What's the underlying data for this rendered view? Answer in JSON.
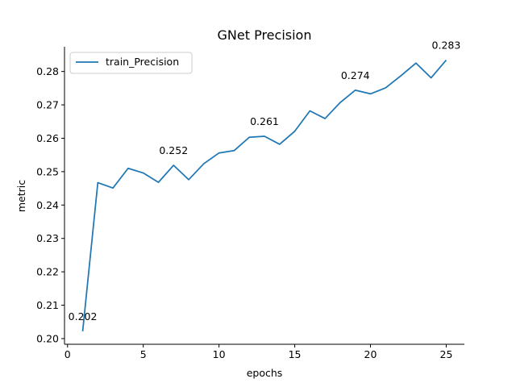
{
  "chart_data": {
    "type": "line",
    "title": "GNet Precision",
    "xlabel": "epochs",
    "ylabel": "metric",
    "xlim": [
      -0.2,
      26.2
    ],
    "ylim": [
      0.1983,
      0.2874
    ],
    "xticks": [
      0,
      5,
      10,
      15,
      20,
      25
    ],
    "yticks": [
      0.2,
      0.21,
      0.22,
      0.23,
      0.24,
      0.25,
      0.26,
      0.27,
      0.28
    ],
    "grid": false,
    "legend": "top-left",
    "series": [
      {
        "name": "train_Precision",
        "color": "#1f77b4",
        "x": [
          1,
          2,
          3,
          4,
          5,
          6,
          7,
          8,
          9,
          10,
          11,
          12,
          13,
          14,
          15,
          16,
          17,
          18,
          19,
          20,
          21,
          22,
          23,
          24,
          25
        ],
        "y": [
          0.2022,
          0.2467,
          0.2451,
          0.251,
          0.2496,
          0.2468,
          0.2519,
          0.2476,
          0.2524,
          0.2556,
          0.2563,
          0.2603,
          0.2606,
          0.2582,
          0.2621,
          0.2682,
          0.2659,
          0.2707,
          0.2744,
          0.2733,
          0.2751,
          0.2787,
          0.2825,
          0.2781,
          0.2834
        ]
      }
    ],
    "annotations": [
      {
        "x": 1,
        "y": 0.2022,
        "text": "0.202"
      },
      {
        "x": 7,
        "y": 0.2519,
        "text": "0.252"
      },
      {
        "x": 13,
        "y": 0.2606,
        "text": "0.261"
      },
      {
        "x": 19,
        "y": 0.2744,
        "text": "0.274"
      },
      {
        "x": 25,
        "y": 0.2834,
        "text": "0.283"
      }
    ]
  }
}
